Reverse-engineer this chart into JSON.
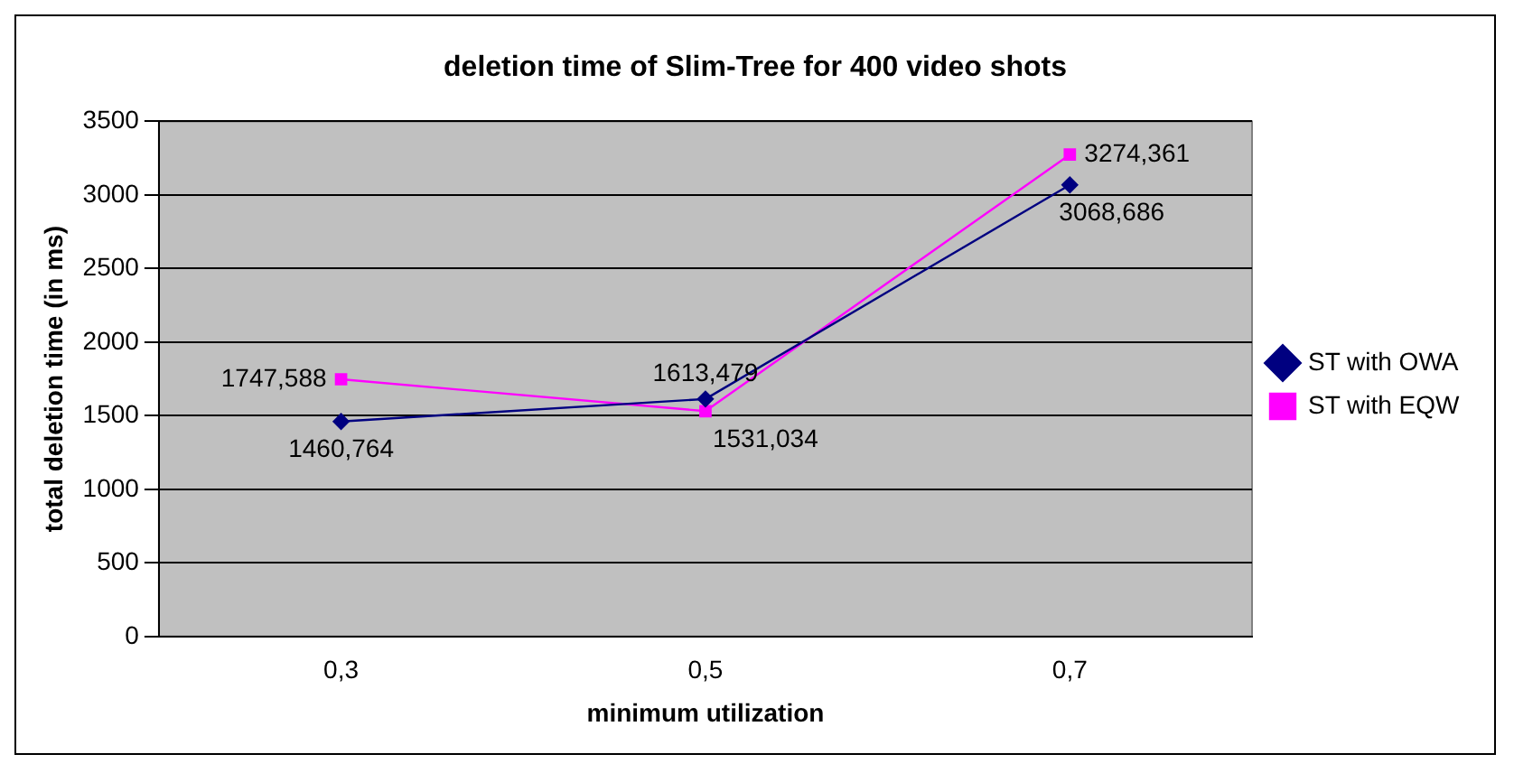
{
  "chart_data": {
    "type": "line",
    "title": "deletion time of Slim-Tree for 400 video shots",
    "xlabel": "minimum utilization",
    "ylabel": "total deletion time (in ms)",
    "categories": [
      "0,3",
      "0,5",
      "0,7"
    ],
    "series": [
      {
        "name": "ST with OWA",
        "color": "#000080",
        "marker": "diamond",
        "values": [
          1460.764,
          1613.479,
          3068.686
        ],
        "value_labels": [
          "1460,764",
          "1613,479",
          "3068,686"
        ]
      },
      {
        "name": "ST with EQW",
        "color": "#ff00ff",
        "marker": "square",
        "values": [
          1747.588,
          1531.034,
          3274.361
        ],
        "value_labels": [
          "1747,588",
          "1531,034",
          "3274,361"
        ]
      }
    ],
    "ylim": [
      0,
      3500
    ],
    "yticks": [
      0,
      500,
      1000,
      1500,
      2000,
      2500,
      3000,
      3500
    ],
    "grid": "y",
    "legend": "right"
  }
}
